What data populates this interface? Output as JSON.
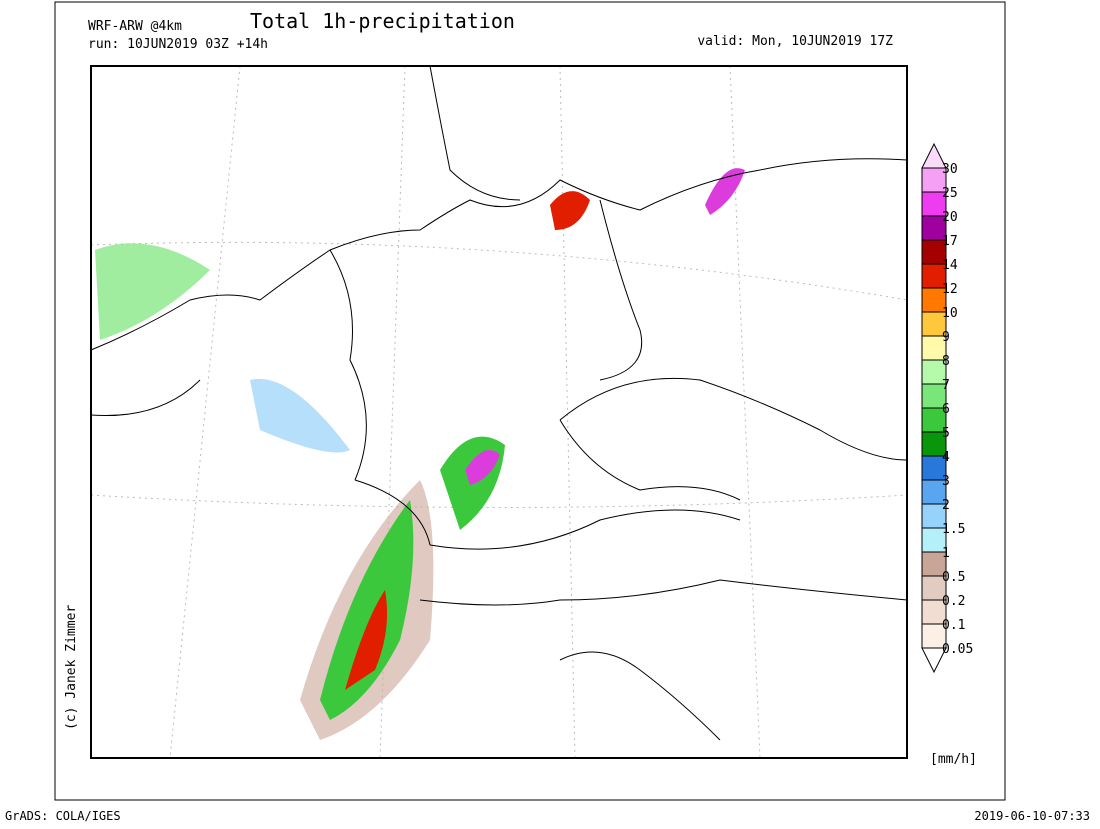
{
  "header": {
    "model": "WRF-ARW @4km",
    "run": "run: 10JUN2019 03Z +14h",
    "title": "Total 1h-precipitation",
    "valid": "valid: Mon, 10JUN2019 17Z"
  },
  "colorbar": {
    "unit": "[mm/h]",
    "levels": [
      {
        "label": "0.05",
        "color": "#fcefe6"
      },
      {
        "label": "0.1",
        "color": "#f2ddd2"
      },
      {
        "label": "0.2",
        "color": "#e2cbc0"
      },
      {
        "label": "0.5",
        "color": "#c9a597"
      },
      {
        "label": "1",
        "color": "#b4f0fa"
      },
      {
        "label": "1.5",
        "color": "#96d2fa"
      },
      {
        "label": "2",
        "color": "#5aa5f0"
      },
      {
        "label": "3",
        "color": "#2878dc"
      },
      {
        "label": "4",
        "color": "#0a960a"
      },
      {
        "label": "5",
        "color": "#3cc83c"
      },
      {
        "label": "6",
        "color": "#78e678"
      },
      {
        "label": "7",
        "color": "#b4faaa"
      },
      {
        "label": "8",
        "color": "#fffaaa"
      },
      {
        "label": "9",
        "color": "#ffc83c"
      },
      {
        "label": "10",
        "color": "#ff7800"
      },
      {
        "label": "12",
        "color": "#e11e00"
      },
      {
        "label": "14",
        "color": "#a50000"
      },
      {
        "label": "17",
        "color": "#a000a0"
      },
      {
        "label": "20",
        "color": "#f03cf0"
      },
      {
        "label": "25",
        "color": "#f5a0f5"
      },
      {
        "label": "30",
        "color": "#fadcfa"
      }
    ]
  },
  "credit": "(c) Janek Zimmer",
  "footer": {
    "left": "GrADS: COLA/IGES",
    "right": "2019-06-10-07:33"
  }
}
